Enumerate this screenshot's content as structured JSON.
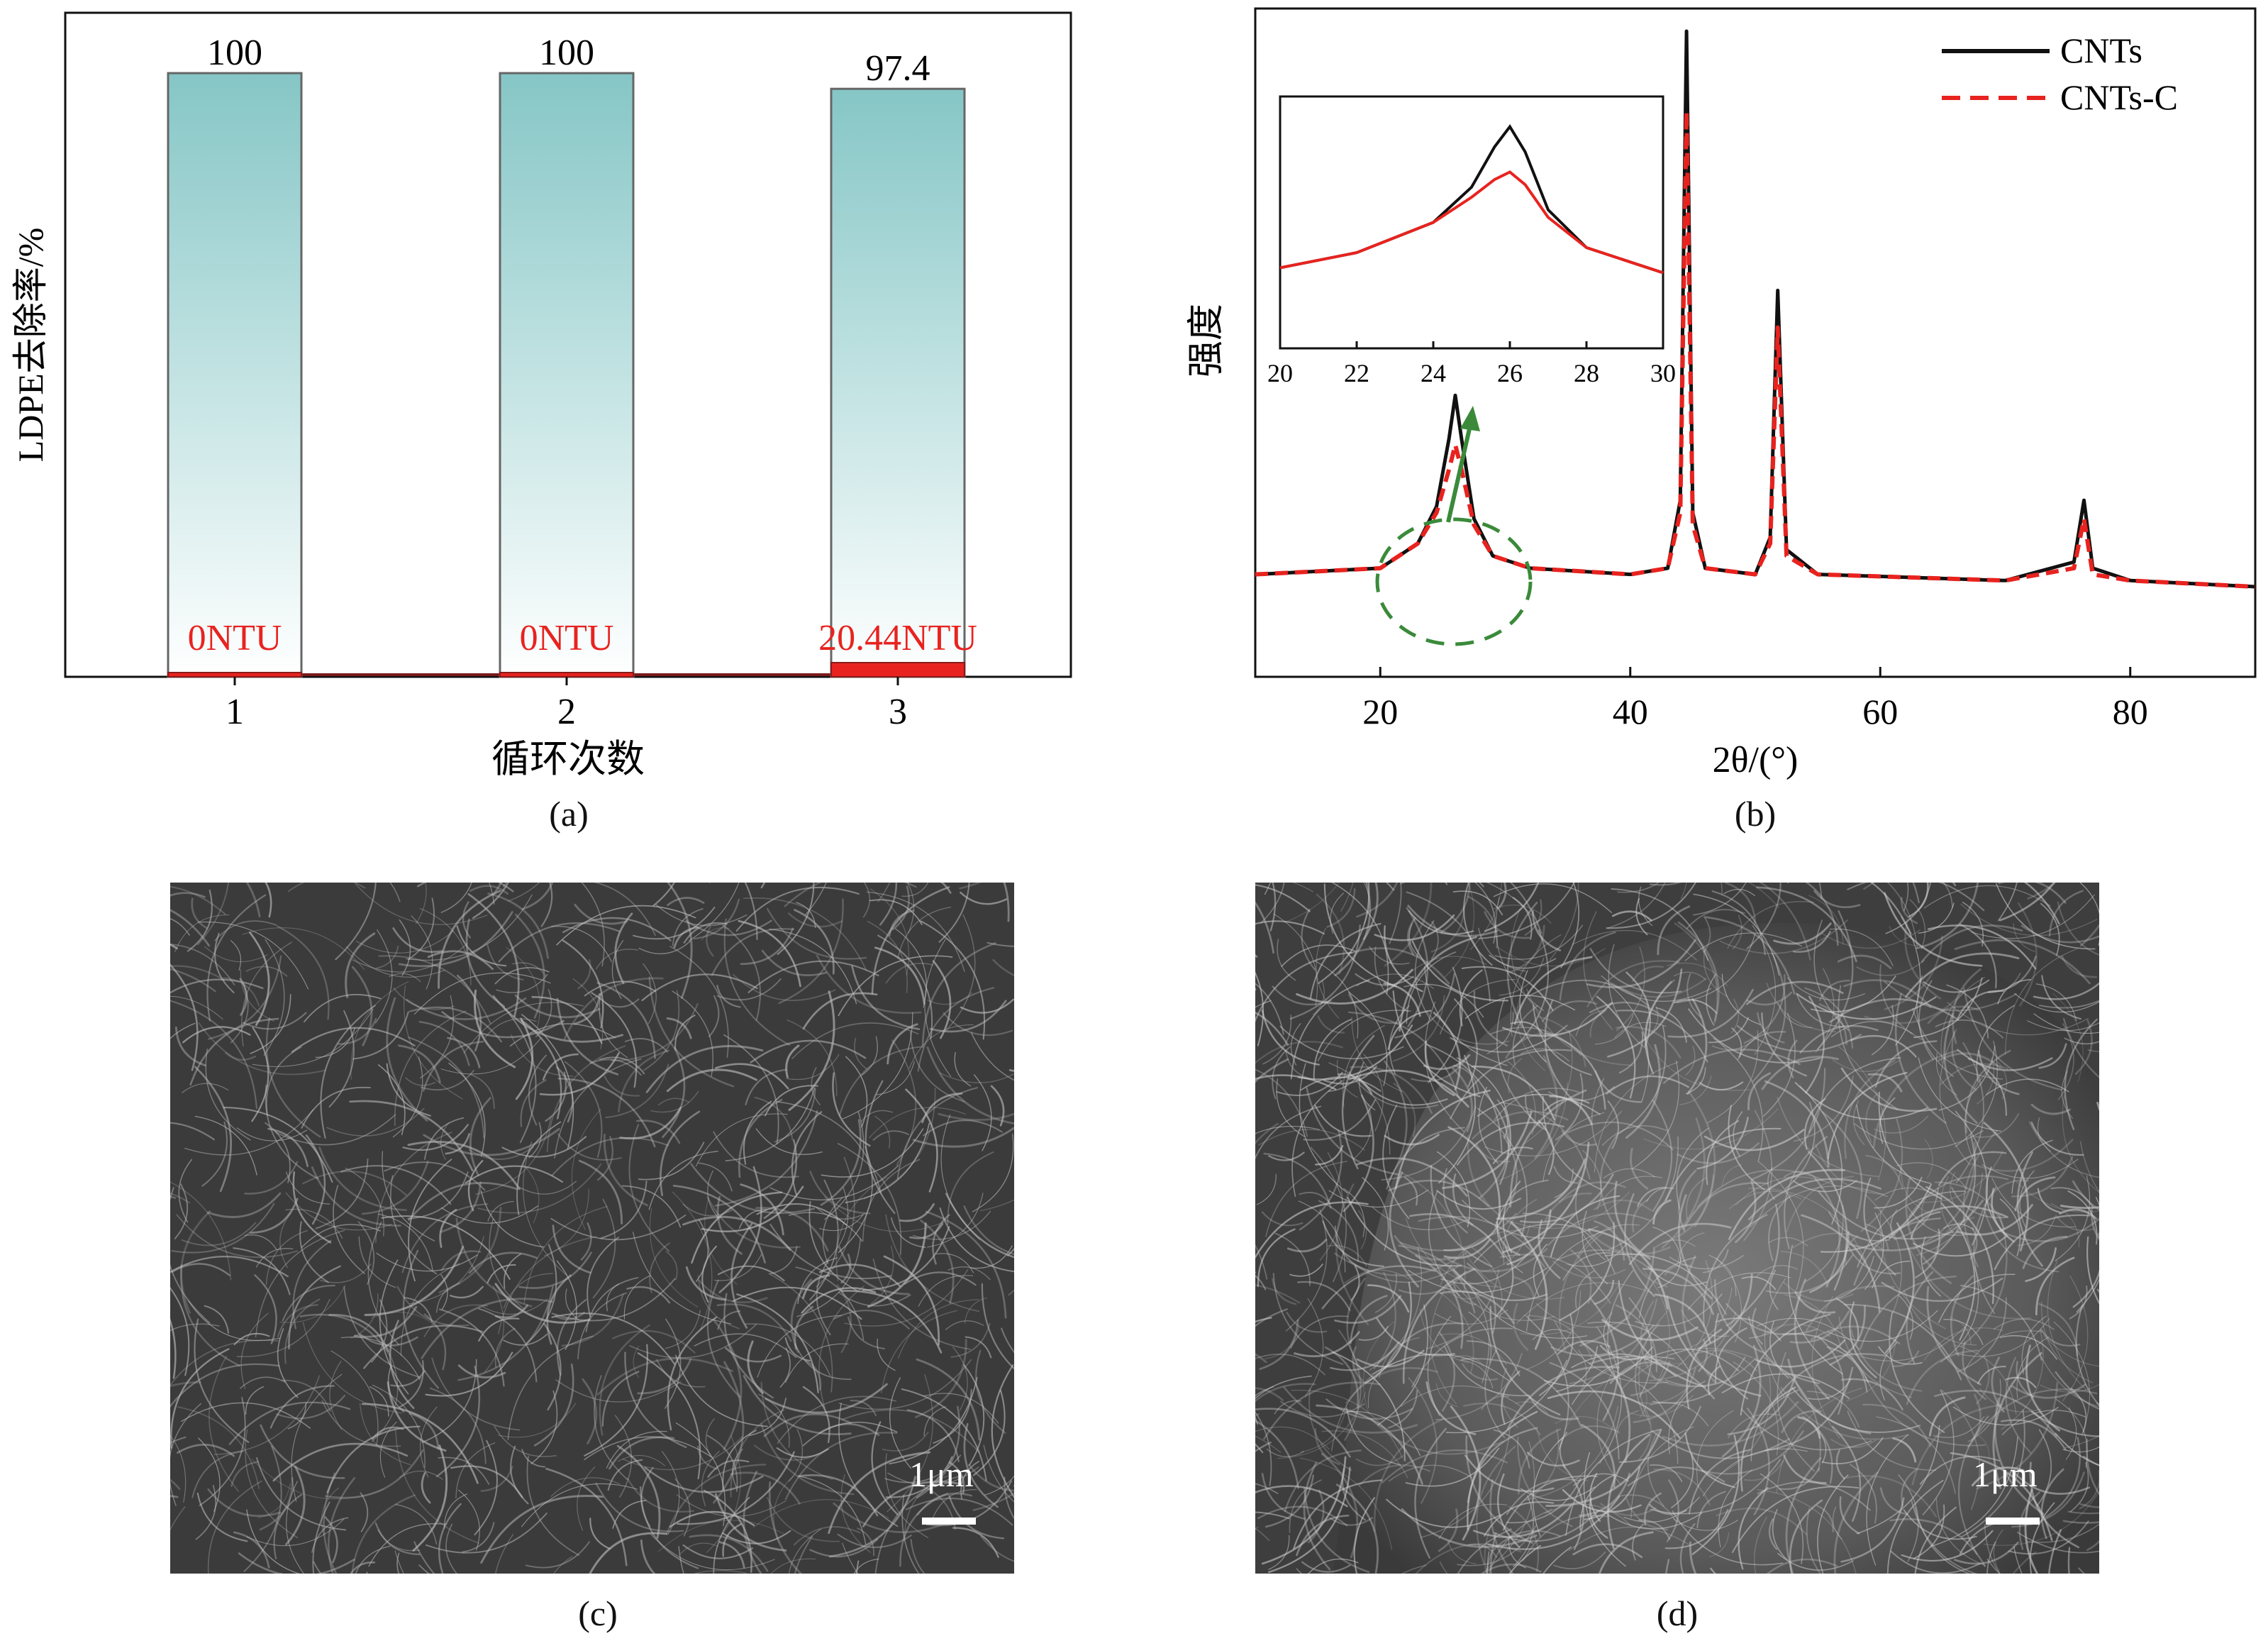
{
  "panels": {
    "a": {
      "label": "(a)"
    },
    "b": {
      "label": "(b)"
    },
    "c": {
      "label": "(c)",
      "scale_bar": "1μm"
    },
    "d": {
      "label": "(d)",
      "scale_bar": "1μm"
    }
  },
  "chart_data": [
    {
      "type": "bar",
      "xlabel": "循环次数",
      "ylabel": "LDPE去除率/%",
      "categories": [
        "1",
        "2",
        "3"
      ],
      "values": [
        100,
        100,
        97.4
      ],
      "value_labels": [
        "100",
        "100",
        "97.4"
      ],
      "turbidity_labels": [
        "0NTU",
        "0NTU",
        "20.44NTU"
      ],
      "turbidity_values": [
        0,
        0,
        20.44
      ],
      "ylim": [
        0,
        110
      ],
      "bar_gradient": [
        "#86c6c6",
        "#ffffff"
      ],
      "turbidity_color": "#e8231f"
    },
    {
      "type": "line",
      "xlabel": "2θ/(°)",
      "ylabel": "强度",
      "xlim": [
        10,
        90
      ],
      "xticks": [
        "20",
        "40",
        "60",
        "80"
      ],
      "legend_position": "top-right",
      "series": [
        {
          "name": "CNTs",
          "color": "#111111",
          "style": "solid",
          "x": [
            10,
            20,
            23,
            24.5,
            25.5,
            26,
            26.5,
            27.5,
            29,
            32,
            40,
            43,
            44,
            44.5,
            45,
            46,
            50,
            51.2,
            51.8,
            52.5,
            55,
            70,
            75.5,
            76.3,
            77,
            80,
            90
          ],
          "y": [
            0.12,
            0.13,
            0.17,
            0.23,
            0.34,
            0.41,
            0.34,
            0.21,
            0.15,
            0.13,
            0.12,
            0.13,
            0.24,
            1.0,
            0.22,
            0.13,
            0.12,
            0.18,
            0.58,
            0.16,
            0.12,
            0.11,
            0.14,
            0.24,
            0.13,
            0.11,
            0.1
          ]
        },
        {
          "name": "CNTs-C",
          "color": "#e8231f",
          "style": "dashed",
          "x": [
            10,
            20,
            23,
            24.5,
            25.5,
            26,
            26.5,
            27.5,
            29,
            32,
            40,
            43,
            44,
            44.5,
            45,
            46,
            50,
            51.2,
            51.8,
            52.5,
            55,
            70,
            75.5,
            76.3,
            77,
            80,
            90
          ],
          "y": [
            0.12,
            0.13,
            0.17,
            0.22,
            0.29,
            0.33,
            0.29,
            0.2,
            0.15,
            0.13,
            0.12,
            0.13,
            0.22,
            0.87,
            0.2,
            0.13,
            0.12,
            0.17,
            0.52,
            0.15,
            0.12,
            0.11,
            0.13,
            0.21,
            0.12,
            0.11,
            0.1
          ]
        }
      ],
      "inset": {
        "xlim": [
          20,
          30
        ],
        "xticks": [
          "20",
          "22",
          "24",
          "26",
          "28",
          "30"
        ],
        "series": [
          {
            "name": "CNTs",
            "color": "#111111",
            "x": [
              20,
              22,
              24,
              25,
              25.6,
              26,
              26.4,
              27,
              28,
              30
            ],
            "y": [
              0.32,
              0.38,
              0.5,
              0.64,
              0.8,
              0.88,
              0.78,
              0.55,
              0.4,
              0.3
            ]
          },
          {
            "name": "CNTs-C",
            "color": "#e8231f",
            "x": [
              20,
              22,
              24,
              25,
              25.6,
              26,
              26.4,
              27,
              28,
              30
            ],
            "y": [
              0.32,
              0.38,
              0.5,
              0.6,
              0.67,
              0.7,
              0.65,
              0.52,
              0.4,
              0.3
            ]
          }
        ]
      }
    }
  ]
}
